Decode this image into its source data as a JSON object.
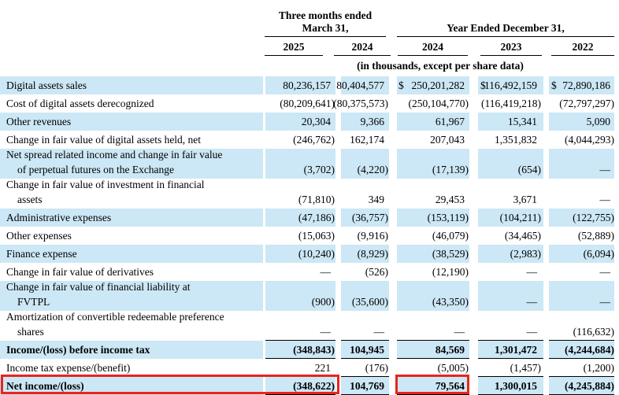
{
  "table": {
    "header": {
      "group1_line1": "Three months ended",
      "group1_line2": "March 31,",
      "group2": "Year Ended December 31,",
      "columns": [
        "2025",
        "2024",
        "2024",
        "2023",
        "2022"
      ],
      "note": "(in thousands, except per share data)"
    },
    "rows": [
      {
        "label": "Digital assets sales",
        "values": [
          "80,236,157",
          "80,404,577",
          "250,201,282",
          "116,492,159",
          "72,890,186"
        ],
        "dollar_cols": [
          2,
          3,
          4
        ],
        "highlight": true,
        "bold": false,
        "rule_below": false
      },
      {
        "label": "Cost of digital assets derecognized",
        "values": [
          "(80,209,641)",
          "(80,375,573)",
          "(250,104,770)",
          "(116,419,218)",
          "(72,797,297)"
        ],
        "highlight": false,
        "bold": false,
        "rule_below": false
      },
      {
        "label": "Other revenues",
        "values": [
          "20,304",
          "9,366",
          "61,967",
          "15,341",
          "5,090"
        ],
        "highlight": true,
        "bold": false,
        "rule_below": false
      },
      {
        "label": "Change in fair value of digital assets held, net",
        "values": [
          "(246,762)",
          "162,174",
          "207,043",
          "1,351,832",
          "(4,044,293)"
        ],
        "highlight": false,
        "bold": false,
        "rule_below": false
      },
      {
        "label": "Net spread related income and change in fair value\nof perpetual futures on the Exchange",
        "values": [
          "(3,702)",
          "(4,220)",
          "(17,139)",
          "(654)",
          "—"
        ],
        "highlight": true,
        "bold": false,
        "rule_below": false
      },
      {
        "label": "Change in fair value of investment in financial\nassets",
        "values": [
          "(71,810)",
          "349",
          "29,453",
          "3,671",
          "—"
        ],
        "highlight": false,
        "bold": false,
        "rule_below": false
      },
      {
        "label": "Administrative expenses",
        "values": [
          "(47,186)",
          "(36,757)",
          "(153,119)",
          "(104,211)",
          "(122,755)"
        ],
        "highlight": true,
        "bold": false,
        "rule_below": false
      },
      {
        "label": "Other expenses",
        "values": [
          "(15,063)",
          "(9,916)",
          "(46,079)",
          "(34,465)",
          "(52,889)"
        ],
        "highlight": false,
        "bold": false,
        "rule_below": false
      },
      {
        "label": "Finance expense",
        "values": [
          "(10,240)",
          "(8,929)",
          "(38,529)",
          "(2,983)",
          "(6,094)"
        ],
        "highlight": true,
        "bold": false,
        "rule_below": false
      },
      {
        "label": "Change in fair value of derivatives",
        "values": [
          "—",
          "(526)",
          "(12,190)",
          "—",
          "—"
        ],
        "highlight": false,
        "bold": false,
        "rule_below": false
      },
      {
        "label": "Change in fair value of financial liability at\nFVTPL",
        "values": [
          "(900)",
          "(35,600)",
          "(43,350)",
          "—",
          "—"
        ],
        "highlight": true,
        "bold": false,
        "rule_below": false
      },
      {
        "label": "Amortization of convertible redeemable preference\nshares",
        "values": [
          "—",
          "—",
          "—",
          "—",
          "(116,632)"
        ],
        "highlight": false,
        "bold": false,
        "rule_below": true
      },
      {
        "label": "Income/(loss) before income tax",
        "values": [
          "(348,843)",
          "104,945",
          "84,569",
          "1,301,472",
          "(4,244,684)"
        ],
        "highlight": true,
        "bold": true,
        "rule_below": true
      },
      {
        "label": "Income tax expense/(benefit)",
        "values": [
          "221",
          "(176)",
          "(5,005)",
          "(1,457)",
          "(1,200)"
        ],
        "highlight": false,
        "bold": false,
        "rule_below": true
      },
      {
        "label": "Net income/(loss)",
        "values": [
          "(348,622)",
          "104,769",
          "79,564",
          "1,300,015",
          "(4,245,884)"
        ],
        "highlight": true,
        "bold": true,
        "rule_below": true
      }
    ]
  },
  "annotations": {
    "red_box_color": "#e8251d",
    "boxes": [
      {
        "name": "highlight-box-net-income-row",
        "description": "Red box around Net income/(loss) label and (348,622)"
      },
      {
        "name": "highlight-box-fy2024-net-income",
        "description": "Red box around 79,564"
      }
    ]
  },
  "colors": {
    "row_highlight": "#cce7f5",
    "text": "#000000"
  }
}
